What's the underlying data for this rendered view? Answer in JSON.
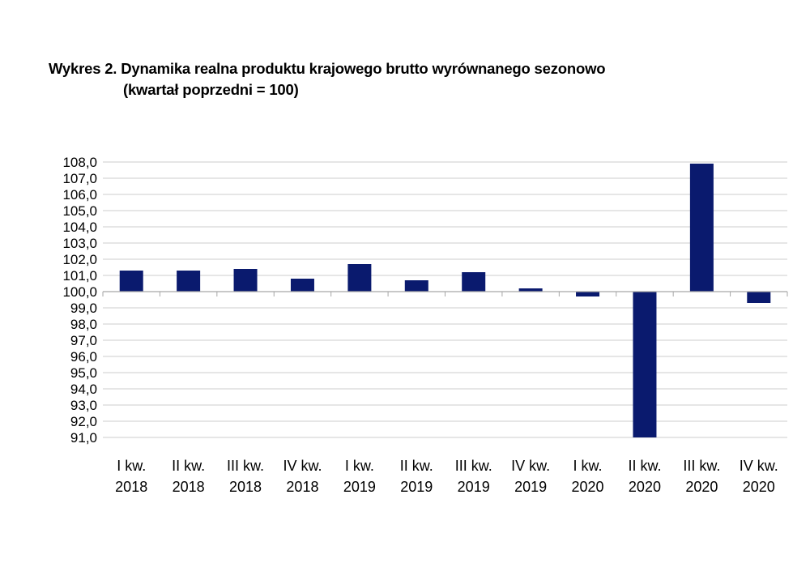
{
  "header": {
    "title_line1": "Wykres 2. Dynamika realna produktu krajowego brutto wyrównanego sezonowo",
    "title_line2": "(kwartał poprzedni = 100)"
  },
  "chart_data": {
    "type": "bar",
    "title": "Wykres 2. Dynamika realna produktu krajowego brutto wyrównanego sezonowo (kwartał poprzedni = 100)",
    "xlabel": "",
    "ylabel": "",
    "baseline": 100,
    "ylim": [
      91,
      108
    ],
    "y_ticks": [
      91,
      92,
      93,
      94,
      95,
      96,
      97,
      98,
      99,
      100,
      101,
      102,
      103,
      104,
      105,
      106,
      107,
      108
    ],
    "y_tick_labels": [
      "91,0",
      "92,0",
      "93,0",
      "94,0",
      "95,0",
      "96,0",
      "97,0",
      "98,0",
      "99,0",
      "100,0",
      "101,0",
      "102,0",
      "103,0",
      "104,0",
      "105,0",
      "106,0",
      "107,0",
      "108,0"
    ],
    "categories": [
      [
        "I kw.",
        "2018"
      ],
      [
        "II kw.",
        "2018"
      ],
      [
        "III kw.",
        "2018"
      ],
      [
        "IV kw.",
        "2018"
      ],
      [
        "I kw.",
        "2019"
      ],
      [
        "II kw.",
        "2019"
      ],
      [
        "III kw.",
        "2019"
      ],
      [
        "IV kw.",
        "2019"
      ],
      [
        "I kw.",
        "2020"
      ],
      [
        "II kw.",
        "2020"
      ],
      [
        "III kw.",
        "2020"
      ],
      [
        "IV kw.",
        "2020"
      ]
    ],
    "values": [
      101.3,
      101.3,
      101.4,
      100.8,
      101.7,
      100.7,
      101.2,
      100.2,
      99.7,
      91.0,
      107.9,
      99.3
    ],
    "bar_color": "#0a1a6e",
    "grid": true,
    "grid_color": "#cccccc",
    "legend": "none"
  }
}
